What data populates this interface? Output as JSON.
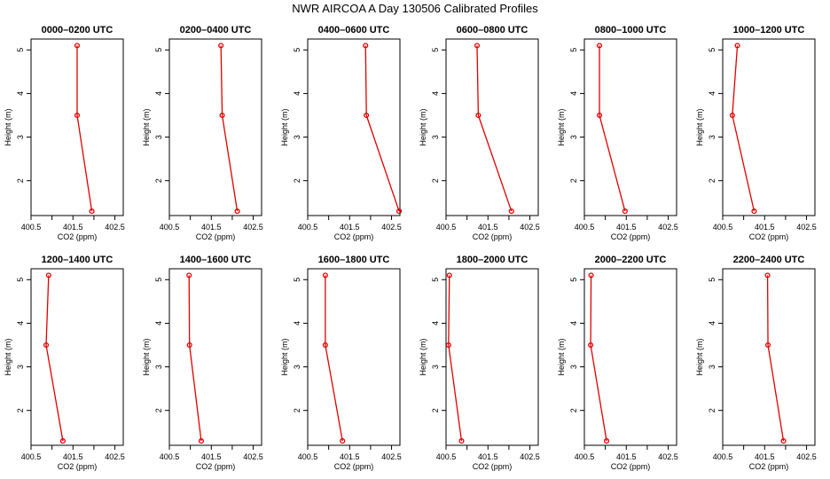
{
  "title": "NWR AIRCOA A  Day 130506  Calibrated Profiles",
  "colors": {
    "series": "#e00000",
    "frame": "#000000"
  },
  "chart_data": {
    "type": "line",
    "xlabel": "CO2 (ppm)",
    "ylabel": "Height (m)",
    "xlim": [
      400.5,
      402.7
    ],
    "ylim": [
      1.2,
      5.25
    ],
    "xticks": [
      400.5,
      401,
      401.5,
      402,
      402.5
    ],
    "xtick_labels": [
      "400.5",
      "",
      "401.5",
      "",
      "402.5"
    ],
    "yticks": [
      2,
      3,
      4,
      5
    ],
    "ytick_labels": [
      "2",
      "3",
      "4",
      "5"
    ],
    "heights": [
      5.1,
      3.5,
      1.3
    ],
    "panels": [
      {
        "title": "0000–0200 UTC",
        "x": [
          401.6,
          401.6,
          401.95
        ]
      },
      {
        "title": "0200–0400 UTC",
        "x": [
          401.73,
          401.76,
          402.12
        ]
      },
      {
        "title": "0400–0600 UTC",
        "x": [
          401.88,
          401.9,
          402.68
        ]
      },
      {
        "title": "0600–0800 UTC",
        "x": [
          401.24,
          401.27,
          402.06
        ]
      },
      {
        "title": "0800–1000 UTC",
        "x": [
          400.86,
          400.86,
          401.47
        ]
      },
      {
        "title": "1000–1200 UTC",
        "x": [
          400.85,
          400.73,
          401.25
        ]
      },
      {
        "title": "1200–1400 UTC",
        "x": [
          400.92,
          400.86,
          401.26
        ]
      },
      {
        "title": "1400–1600 UTC",
        "x": [
          400.97,
          400.98,
          401.26
        ]
      },
      {
        "title": "1600–1800 UTC",
        "x": [
          400.92,
          400.92,
          401.33
        ]
      },
      {
        "title": "1800–2000 UTC",
        "x": [
          400.58,
          400.56,
          400.87
        ]
      },
      {
        "title": "2000–2200 UTC",
        "x": [
          400.66,
          400.65,
          401.03
        ]
      },
      {
        "title": "2200–2400 UTC",
        "x": [
          401.57,
          401.58,
          401.95
        ]
      }
    ]
  }
}
